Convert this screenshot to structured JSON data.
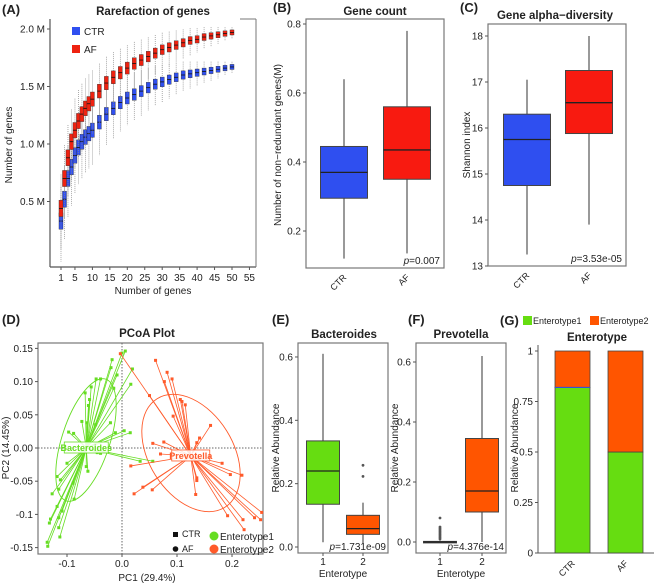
{
  "panels": {
    "A": "(A)",
    "B": "(B)",
    "C": "(C)",
    "D": "(D)",
    "E": "(E)",
    "F": "(F)",
    "G": "(G)"
  },
  "chart_data": [
    {
      "id": "A",
      "type": "box",
      "title": "Rarefaction of  genes",
      "xlabel": "Number of genes",
      "ylabel": "Number of genes",
      "xticks": [
        "1",
        "5",
        "10",
        "15",
        "20",
        "25",
        "30",
        "35",
        "40",
        "45",
        "50",
        "55"
      ],
      "xtick_values": [
        1,
        5,
        10,
        15,
        20,
        25,
        30,
        35,
        40,
        45,
        50,
        55
      ],
      "yticks": [
        {
          "v": 0.5,
          "label": "0.5 M"
        },
        {
          "v": 1.0,
          "label": "1.0 M"
        },
        {
          "v": 1.5,
          "label": "1.5 M"
        },
        {
          "v": 2.0,
          "label": "2.0 M"
        }
      ],
      "units": "millions",
      "legend": [
        {
          "label": "CTR",
          "color": "#2f4ff0"
        },
        {
          "label": "AF",
          "color": "#ee2211"
        }
      ],
      "x": [
        1,
        2,
        3,
        4,
        5,
        6,
        7,
        8,
        9,
        10,
        12,
        14,
        16,
        18,
        20,
        22,
        24,
        26,
        28,
        30,
        32,
        34,
        36,
        38,
        40,
        42,
        44,
        46,
        48,
        50
      ],
      "series": [
        {
          "name": "CTR",
          "color": "#2f4ff0",
          "median": [
            0.33,
            0.52,
            0.7,
            0.8,
            0.9,
            0.97,
            1.02,
            1.06,
            1.09,
            1.12,
            1.19,
            1.26,
            1.31,
            1.36,
            1.4,
            1.43,
            1.46,
            1.49,
            1.52,
            1.54,
            1.56,
            1.58,
            1.6,
            1.61,
            1.62,
            1.63,
            1.64,
            1.65,
            1.66,
            1.67
          ]
        },
        {
          "name": "AF",
          "color": "#ee2211",
          "median": [
            0.44,
            0.7,
            0.88,
            1.02,
            1.12,
            1.2,
            1.26,
            1.31,
            1.35,
            1.39,
            1.46,
            1.53,
            1.58,
            1.62,
            1.66,
            1.7,
            1.73,
            1.76,
            1.79,
            1.82,
            1.84,
            1.86,
            1.88,
            1.9,
            1.91,
            1.93,
            1.94,
            1.95,
            1.96,
            1.97
          ]
        }
      ]
    },
    {
      "id": "B",
      "type": "box",
      "title": "Gene count",
      "ylabel": "Number of non−redundant genes(M)",
      "yticks": [
        {
          "v": 0.2,
          "label": "0.2"
        },
        {
          "v": 0.4,
          "label": "0.4"
        },
        {
          "v": 0.6,
          "label": "0.6"
        },
        {
          "v": 0.8,
          "label": "0.8"
        }
      ],
      "categories": [
        "CTR",
        "AF"
      ],
      "boxes": [
        {
          "name": "CTR",
          "color": "#2f4ff0",
          "min": 0.12,
          "q1": 0.295,
          "median": 0.37,
          "q3": 0.445,
          "max": 0.64
        },
        {
          "name": "AF",
          "color": "#f81a10",
          "min": 0.135,
          "q1": 0.35,
          "median": 0.435,
          "q3": 0.56,
          "max": 0.78
        }
      ],
      "annotation": {
        "prefix": "p",
        "text": "=0.007"
      }
    },
    {
      "id": "C",
      "type": "box",
      "title": "Gene alpha−diversity",
      "ylabel": "Shannon index",
      "yticks": [
        {
          "v": 13,
          "label": "13"
        },
        {
          "v": 14,
          "label": "14"
        },
        {
          "v": 15,
          "label": "15"
        },
        {
          "v": 16,
          "label": "16"
        },
        {
          "v": 17,
          "label": "17"
        },
        {
          "v": 18,
          "label": "18"
        }
      ],
      "categories": [
        "CTR",
        "AF"
      ],
      "boxes": [
        {
          "name": "CTR",
          "color": "#2f4ff0",
          "min": 13.25,
          "q1": 14.75,
          "median": 15.75,
          "q3": 16.3,
          "max": 17.05
        },
        {
          "name": "AF",
          "color": "#f81a10",
          "min": 13.9,
          "q1": 15.88,
          "median": 16.55,
          "q3": 17.25,
          "max": 18.0
        }
      ],
      "annotation": {
        "prefix": "p",
        "text": "=3.53e-05"
      }
    },
    {
      "id": "D",
      "type": "scatter",
      "title": "PCoA Plot",
      "xlabel": "PC1 (29.4%)",
      "ylabel": "PC2 (14.45%)",
      "xticks": [
        {
          "v": -0.1,
          "label": "-0.1"
        },
        {
          "v": 0.0,
          "label": "0.0"
        },
        {
          "v": 0.1,
          "label": "0.1"
        },
        {
          "v": 0.2,
          "label": "0.2"
        }
      ],
      "yticks": [
        {
          "v": 0.15,
          "label": "0.15"
        },
        {
          "v": 0.1,
          "label": "0.10"
        },
        {
          "v": 0.05,
          "label": "0.05"
        },
        {
          "v": 0.0,
          "label": "0.00"
        },
        {
          "v": -0.05,
          "label": "-0.05"
        },
        {
          "v": -0.1,
          "label": "-0.1"
        },
        {
          "v": -0.15,
          "label": "-0.15"
        }
      ],
      "legend_shapes": [
        {
          "label": "CTR",
          "shape": "square"
        },
        {
          "label": "AF",
          "shape": "circle"
        }
      ],
      "legend_groups": [
        {
          "label": "Enterotype1",
          "color": "#66dd22"
        },
        {
          "label": "Enterotype2",
          "color": "#ff5a2a"
        }
      ],
      "groups": [
        {
          "name": "Enterotype1",
          "label": "Bacteroides",
          "color": "#66dd22",
          "centroid": [
            -0.065,
            0.0
          ],
          "points": [
            [
              0.006,
              0.146
            ],
            [
              0.0,
              0.143
            ],
            [
              -0.018,
              0.133
            ],
            [
              -0.02,
              0.121
            ],
            [
              0.019,
              0.119
            ],
            [
              0.016,
              0.096
            ],
            [
              -0.009,
              0.11
            ],
            [
              -0.047,
              0.104
            ],
            [
              -0.039,
              0.104
            ],
            [
              -0.056,
              0.092
            ],
            [
              -0.015,
              0.09
            ],
            [
              -0.059,
              0.073
            ],
            [
              -0.067,
              0.083
            ],
            [
              -0.061,
              0.064
            ],
            [
              -0.073,
              0.04
            ],
            [
              -0.064,
              0.038
            ],
            [
              -0.048,
              0.035
            ],
            [
              -0.021,
              0.038
            ],
            [
              0.004,
              0.026
            ],
            [
              -0.012,
              0.023
            ],
            [
              -0.097,
              0.024
            ],
            [
              -0.088,
              0.022
            ],
            [
              -0.076,
              -0.003
            ],
            [
              -0.045,
              -0.007
            ],
            [
              -0.039,
              -0.008
            ],
            [
              -0.065,
              -0.028
            ],
            [
              -0.062,
              -0.035
            ],
            [
              -0.1,
              -0.023
            ],
            [
              -0.118,
              -0.043
            ],
            [
              -0.112,
              -0.048
            ],
            [
              -0.127,
              -0.069
            ],
            [
              -0.115,
              -0.062
            ],
            [
              -0.087,
              -0.077
            ],
            [
              -0.089,
              -0.053
            ],
            [
              -0.118,
              -0.088
            ],
            [
              -0.13,
              -0.107
            ],
            [
              -0.132,
              -0.113
            ],
            [
              -0.115,
              -0.105
            ],
            [
              -0.109,
              -0.095
            ],
            [
              -0.115,
              -0.12
            ],
            [
              -0.113,
              -0.134
            ],
            [
              -0.136,
              -0.142
            ],
            [
              -0.135,
              -0.148
            ],
            [
              0.033,
              -0.02
            ],
            [
              0.056,
              -0.02
            ],
            [
              0.015,
              0.023
            ]
          ]
        },
        {
          "name": "Enterotype2",
          "label": "Prevotella",
          "color": "#ff5a2a",
          "centroid": [
            0.125,
            -0.012
          ],
          "points": [
            [
              -0.003,
              0.142
            ],
            [
              0.061,
              0.132
            ],
            [
              0.082,
              0.114
            ],
            [
              0.091,
              0.104
            ],
            [
              0.077,
              0.1
            ],
            [
              0.05,
              0.079
            ],
            [
              0.106,
              0.073
            ],
            [
              0.109,
              0.07
            ],
            [
              0.115,
              0.065
            ],
            [
              0.093,
              0.048
            ],
            [
              0.161,
              0.034
            ],
            [
              0.141,
              0.015
            ],
            [
              0.136,
              0.008
            ],
            [
              0.056,
              0.007
            ],
            [
              0.076,
              0.009
            ],
            [
              0.07,
              -0.009
            ],
            [
              0.016,
              -0.027
            ],
            [
              0.055,
              -0.063
            ],
            [
              0.038,
              -0.059
            ],
            [
              0.022,
              -0.069
            ],
            [
              0.136,
              -0.045
            ],
            [
              0.136,
              -0.049
            ],
            [
              0.134,
              -0.07
            ],
            [
              0.197,
              -0.04
            ],
            [
              0.218,
              -0.041
            ],
            [
              0.192,
              -0.102
            ],
            [
              0.22,
              -0.108
            ],
            [
              0.241,
              -0.105
            ],
            [
              0.252,
              -0.108
            ],
            [
              0.254,
              -0.097
            ],
            [
              0.222,
              -0.123
            ],
            [
              0.182,
              -0.023
            ]
          ]
        }
      ]
    },
    {
      "id": "E",
      "type": "box",
      "title": "Bacteroides",
      "xlabel": "Enterotype",
      "ylabel": "Relative Abundance",
      "yticks": [
        {
          "v": 0.0,
          "label": "0.0"
        },
        {
          "v": 0.2,
          "label": "0.2"
        },
        {
          "v": 0.4,
          "label": "0.4"
        },
        {
          "v": 0.6,
          "label": "0.6"
        }
      ],
      "categories": [
        "1",
        "2"
      ],
      "boxes": [
        {
          "name": "1",
          "color": "#66dd11",
          "min": 0.015,
          "q1": 0.135,
          "median": 0.24,
          "q3": 0.335,
          "max": 0.61,
          "outliers": []
        },
        {
          "name": "2",
          "color": "#ff5500",
          "min": 0.01,
          "q1": 0.04,
          "median": 0.058,
          "q3": 0.1,
          "max": 0.14,
          "outliers": [
            0.223,
            0.258
          ]
        }
      ],
      "annotation": {
        "prefix": "p",
        "text": "=1.731e-09"
      }
    },
    {
      "id": "F",
      "type": "box",
      "title": "Prevotella",
      "xlabel": "Enterotype",
      "ylabel": "Relative Abundance",
      "yticks": [
        {
          "v": 0.0,
          "label": "0.0"
        },
        {
          "v": 0.2,
          "label": "0.2"
        },
        {
          "v": 0.4,
          "label": "0.4"
        },
        {
          "v": 0.6,
          "label": "0.6"
        }
      ],
      "categories": [
        "1",
        "2"
      ],
      "boxes": [
        {
          "name": "1",
          "color": "#ff5500",
          "min": 0.0,
          "q1": 0.0,
          "median": 0.0,
          "q3": 0.002,
          "max": 0.005,
          "outliers": [
            0.01,
            0.015,
            0.02,
            0.025,
            0.03,
            0.035,
            0.04,
            0.045,
            0.05,
            0.08
          ]
        },
        {
          "name": "2",
          "color": "#ff5500",
          "min": 0.0,
          "q1": 0.1,
          "median": 0.17,
          "q3": 0.345,
          "max": 0.62,
          "outliers": []
        }
      ],
      "annotation": {
        "prefix": "p",
        "text": "=4.376e-14"
      }
    },
    {
      "id": "G",
      "type": "bar",
      "stacked": true,
      "title": "Enterotype",
      "ylabel": "Relative Abundance",
      "yticks": [
        {
          "v": 0,
          "label": "0"
        },
        {
          "v": 0.25,
          "label": "0.25"
        },
        {
          "v": 0.5,
          "label": "0.5"
        },
        {
          "v": 0.75,
          "label": "0.75"
        },
        {
          "v": 1,
          "label": "1"
        }
      ],
      "categories": [
        "CTR",
        "AF"
      ],
      "legend": [
        {
          "label": "Enterotype1",
          "color": "#66dd11"
        },
        {
          "label": "Enterotype2",
          "color": "#ff5500"
        }
      ],
      "series": [
        {
          "name": "Enterotype1",
          "color": "#66dd11",
          "values": [
            0.82,
            0.5
          ]
        },
        {
          "name": "Enterotype2",
          "color": "#ff5500",
          "values": [
            0.18,
            0.5
          ]
        }
      ]
    }
  ]
}
